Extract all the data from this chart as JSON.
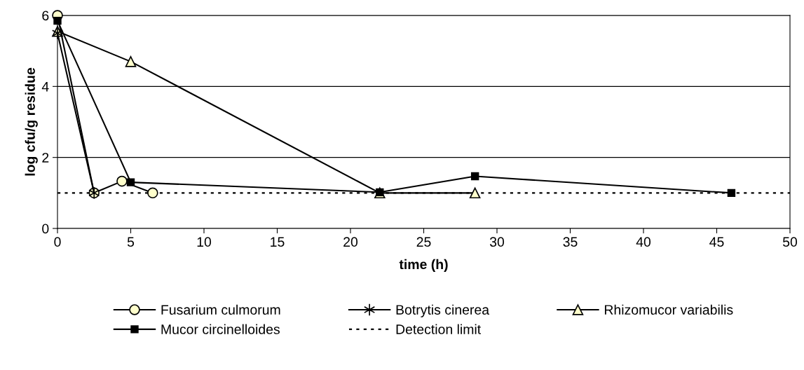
{
  "chart_data": {
    "type": "line",
    "xlabel": "time (h)",
    "ylabel": "log cfu/g residue",
    "xlim": [
      0,
      50
    ],
    "xticks": [
      0,
      5,
      10,
      15,
      20,
      25,
      30,
      35,
      40,
      45,
      50
    ],
    "ylim": [
      0,
      6
    ],
    "yticks": [
      0,
      2,
      4,
      6
    ],
    "grid": "y",
    "legend": "bottom",
    "series": [
      {
        "name": "Fusarium culmorum",
        "color": "#ffffcc",
        "marker": "circle",
        "x": [
          0,
          2.5,
          4.4,
          6.5
        ],
        "values": [
          6.0,
          1.0,
          1.33,
          1.0
        ]
      },
      {
        "name": "Botrytis cinerea",
        "color": "#000000",
        "marker": "cross",
        "x": [
          0,
          2.5
        ],
        "values": [
          5.5,
          1.0
        ]
      },
      {
        "name": "Rhizomucor variabilis",
        "color": "#ffffcc",
        "marker": "triangle",
        "x": [
          0,
          5,
          22,
          28.5
        ],
        "values": [
          5.55,
          4.7,
          1.0,
          1.0
        ]
      },
      {
        "name": "Mucor circinelloides",
        "color": "#000000",
        "marker": "square",
        "x": [
          0,
          5,
          22,
          28.5,
          46
        ],
        "values": [
          5.85,
          1.3,
          1.02,
          1.47,
          1.0
        ]
      }
    ],
    "ref_lines": [
      {
        "axis": "y",
        "value": 1,
        "label": "Detection limit",
        "line_style": "dotted",
        "color": "#000000"
      }
    ]
  }
}
